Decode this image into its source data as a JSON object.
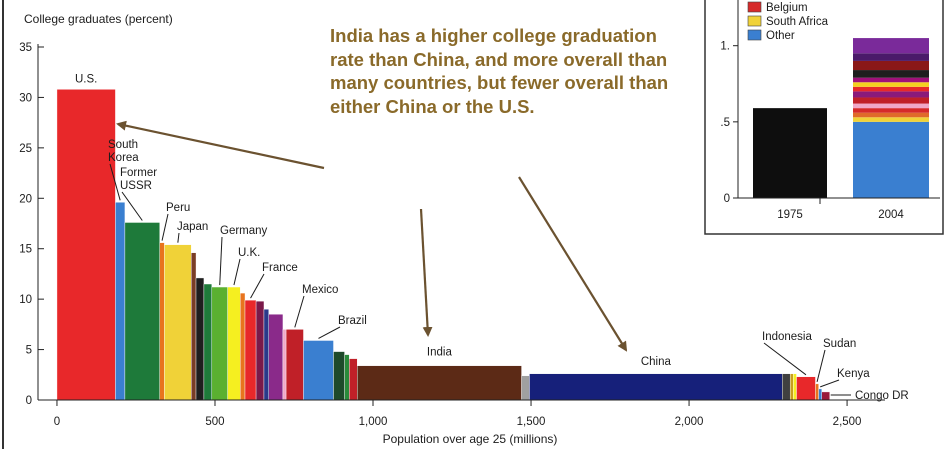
{
  "chart_data": [
    {
      "type": "bar",
      "variant": "variable-width",
      "ylabel": "College graduates (percent)",
      "xlabel": "Population over age 25 (millions)",
      "ylim": [
        0,
        35
      ],
      "xlim": [
        -60,
        2620
      ],
      "y_ticks": [
        "0",
        "5",
        "10",
        "15",
        "20",
        "25",
        "30",
        "35"
      ],
      "x_ticks": [
        "0",
        "500",
        "1,000",
        "1,500",
        "2,000",
        "2,500"
      ],
      "bars": [
        {
          "label": "U.S.",
          "population": 185,
          "percent": 30.8,
          "color": "#e8282a"
        },
        {
          "label": "South Korea",
          "population": 30,
          "percent": 19.6,
          "color": "#3a7fd0"
        },
        {
          "label": "Former USSR",
          "population": 110,
          "percent": 17.6,
          "color": "#1e7a3a"
        },
        {
          "label": "Peru",
          "population": 15,
          "percent": 15.6,
          "color": "#e8741e"
        },
        {
          "label": "Japan",
          "population": 85,
          "percent": 15.4,
          "color": "#f0d238"
        },
        {
          "label": "",
          "population": 15,
          "percent": 14.6,
          "color": "#7a3d26"
        },
        {
          "label": "",
          "population": 25,
          "percent": 12.1,
          "color": "#1e1e1e"
        },
        {
          "label": "",
          "population": 25,
          "percent": 11.5,
          "color": "#1e7a3a"
        },
        {
          "label": "Germany",
          "population": 50,
          "percent": 11.2,
          "color": "#5ab030"
        },
        {
          "label": "U.K.",
          "population": 40,
          "percent": 11.2,
          "color": "#f5ef20"
        },
        {
          "label": "",
          "population": 15,
          "percent": 10.6,
          "color": "#e8741e"
        },
        {
          "label": "France",
          "population": 35,
          "percent": 9.9,
          "color": "#e8282a"
        },
        {
          "label": "",
          "population": 25,
          "percent": 9.8,
          "color": "#7a1a4a"
        },
        {
          "label": "",
          "population": 15,
          "percent": 9.0,
          "color": "#2a3a8a"
        },
        {
          "label": "",
          "population": 45,
          "percent": 8.5,
          "color": "#8a2a8a"
        },
        {
          "label": "",
          "population": 10,
          "percent": 7.0,
          "color": "#f0a8c8"
        },
        {
          "label": "Mexico",
          "population": 55,
          "percent": 7.0,
          "color": "#c02028"
        },
        {
          "label": "Brazil",
          "population": 95,
          "percent": 5.9,
          "color": "#3a7fd0"
        },
        {
          "label": "",
          "population": 35,
          "percent": 4.8,
          "color": "#1e4a2a"
        },
        {
          "label": "",
          "population": 15,
          "percent": 4.5,
          "color": "#2a8a3a"
        },
        {
          "label": "",
          "population": 25,
          "percent": 4.1,
          "color": "#c02028"
        },
        {
          "label": "India",
          "population": 520,
          "percent": 3.4,
          "color": "#5c2a16"
        },
        {
          "label": "",
          "population": 25,
          "percent": 2.4,
          "color": "#a0a0a0"
        },
        {
          "label": "China",
          "population": 800,
          "percent": 2.6,
          "color": "#16207a"
        },
        {
          "label": "",
          "population": 25,
          "percent": 2.6,
          "color": "#404040"
        },
        {
          "label": "",
          "population": 10,
          "percent": 2.6,
          "color": "#c8a01e"
        },
        {
          "label": "",
          "population": 10,
          "percent": 2.6,
          "color": "#f5ef20"
        },
        {
          "label": "Indonesia",
          "population": 60,
          "percent": 2.3,
          "color": "#e8282a"
        },
        {
          "label": "Sudan",
          "population": 10,
          "percent": 1.6,
          "color": "#e8741e"
        },
        {
          "label": "Kenya",
          "population": 10,
          "percent": 1.1,
          "color": "#3a7fd0"
        },
        {
          "label": "Congo DR",
          "population": 25,
          "percent": 0.8,
          "color": "#9a1a3a"
        }
      ]
    },
    {
      "type": "bar",
      "variant": "stacked",
      "categories": [
        "1975",
        "2004"
      ],
      "y_ticks": [
        "0",
        ".5",
        "1."
      ],
      "ylim": [
        0,
        1.3
      ],
      "legend": [
        {
          "name": "Belgium",
          "color": "#d62a2a"
        },
        {
          "name": "South Africa",
          "color": "#f0d238"
        },
        {
          "name": "Other",
          "color": "#3a7fd0"
        }
      ],
      "bar_1975": {
        "value": 0.59,
        "color": "#0e0e0e"
      },
      "bar_2004_segments": [
        {
          "value": 0.5,
          "color": "#3a7fd0"
        },
        {
          "value": 0.03,
          "color": "#f0d238"
        },
        {
          "value": 0.03,
          "color": "#e06a2a"
        },
        {
          "value": 0.03,
          "color": "#d62a2a"
        },
        {
          "value": 0.03,
          "color": "#f0a8c8"
        },
        {
          "value": 0.04,
          "color": "#c02028"
        },
        {
          "value": 0.04,
          "color": "#8a1a7a"
        },
        {
          "value": 0.03,
          "color": "#e8282a"
        },
        {
          "value": 0.03,
          "color": "#f5d020"
        },
        {
          "value": 0.03,
          "color": "#a0107a"
        },
        {
          "value": 0.05,
          "color": "#1e1e1e"
        },
        {
          "value": 0.06,
          "color": "#8a1818"
        },
        {
          "value": 0.05,
          "color": "#4a1a6a"
        },
        {
          "value": 0.1,
          "color": "#7a2a9a"
        }
      ]
    }
  ],
  "callout": {
    "text": "India has a higher college graduation rate than China, and more overall than many countries, but fewer overall than either China or the U.S.",
    "color": "#8a6a2a"
  }
}
